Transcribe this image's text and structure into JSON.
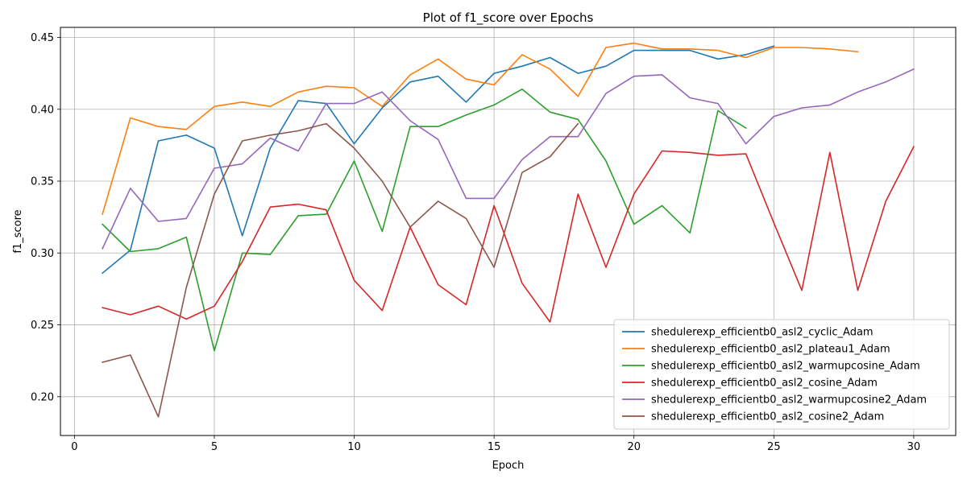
{
  "chart_data": {
    "type": "line",
    "title": "Plot of f1_score over Epochs",
    "xlabel": "Epoch",
    "ylabel": "f1_score",
    "xlim": [
      -0.5,
      31.5
    ],
    "ylim": [
      0.173,
      0.457
    ],
    "xticks": [
      0,
      5,
      10,
      15,
      20,
      25,
      30
    ],
    "yticks": [
      0.2,
      0.25,
      0.3,
      0.35,
      0.4,
      0.45
    ],
    "xtick_labels": [
      "0",
      "5",
      "10",
      "15",
      "20",
      "25",
      "30"
    ],
    "ytick_labels": [
      "0.20",
      "0.25",
      "0.30",
      "0.35",
      "0.40",
      "0.45"
    ],
    "grid": true,
    "legend_position": "bottom-right",
    "series": [
      {
        "name": "shedulerexp_efficientb0_asl2_cyclic_Adam",
        "color": "#1f77b4",
        "x": [
          1,
          2,
          3,
          4,
          5,
          6,
          7,
          8,
          9,
          10,
          11,
          12,
          13,
          14,
          15,
          16,
          17,
          18,
          19,
          20,
          21,
          22,
          23,
          24,
          25
        ],
        "y": [
          0.286,
          0.302,
          0.378,
          0.382,
          0.373,
          0.312,
          0.373,
          0.406,
          0.404,
          0.376,
          0.401,
          0.419,
          0.423,
          0.405,
          0.425,
          0.43,
          0.436,
          0.425,
          0.43,
          0.441,
          0.441,
          0.441,
          0.435,
          0.438,
          0.444
        ]
      },
      {
        "name": "shedulerexp_efficientb0_asl2_plateau1_Adam",
        "color": "#ff7f0e",
        "x": [
          1,
          2,
          3,
          4,
          5,
          6,
          7,
          8,
          9,
          10,
          11,
          12,
          13,
          14,
          15,
          16,
          17,
          18,
          19,
          20,
          21,
          22,
          23,
          24,
          25,
          26,
          27,
          28
        ],
        "y": [
          0.327,
          0.394,
          0.388,
          0.386,
          0.402,
          0.405,
          0.402,
          0.412,
          0.416,
          0.415,
          0.402,
          0.424,
          0.435,
          0.421,
          0.417,
          0.438,
          0.428,
          0.409,
          0.443,
          0.446,
          0.442,
          0.442,
          0.441,
          0.436,
          0.443,
          0.443,
          0.442,
          0.44
        ]
      },
      {
        "name": "shedulerexp_efficientb0_asl2_warmupcosine_Adam",
        "color": "#2ca02c",
        "x": [
          1,
          2,
          3,
          4,
          5,
          6,
          7,
          8,
          9,
          10,
          11,
          12,
          13,
          14,
          15,
          16,
          17,
          18,
          19,
          20,
          21,
          22,
          23,
          24
        ],
        "y": [
          0.32,
          0.301,
          0.303,
          0.311,
          0.232,
          0.3,
          0.299,
          0.326,
          0.327,
          0.364,
          0.315,
          0.388,
          0.388,
          0.396,
          0.403,
          0.414,
          0.398,
          0.393,
          0.364,
          0.32,
          0.333,
          0.314,
          0.399,
          0.387
        ]
      },
      {
        "name": "shedulerexp_efficientb0_asl2_cosine_Adam",
        "color": "#d62728",
        "x": [
          1,
          2,
          3,
          4,
          5,
          6,
          7,
          8,
          9,
          10,
          11,
          12,
          13,
          14,
          15,
          16,
          17,
          18,
          19,
          20,
          21,
          22,
          23,
          24,
          25,
          26,
          27,
          28,
          29,
          30
        ],
        "y": [
          0.262,
          0.257,
          0.263,
          0.254,
          0.263,
          0.294,
          0.332,
          0.334,
          0.33,
          0.281,
          0.26,
          0.318,
          0.278,
          0.264,
          0.333,
          0.279,
          0.252,
          0.341,
          0.29,
          0.341,
          0.371,
          0.37,
          0.368,
          0.369,
          0.321,
          0.274,
          0.37,
          0.274,
          0.336,
          0.374
        ]
      },
      {
        "name": "shedulerexp_efficientb0_asl2_warmupcosine2_Adam",
        "color": "#9467bd",
        "x": [
          1,
          2,
          3,
          4,
          5,
          6,
          7,
          8,
          9,
          10,
          11,
          12,
          13,
          14,
          15,
          16,
          17,
          18,
          19,
          20,
          21,
          22,
          23,
          24,
          25,
          26,
          27,
          28,
          29,
          30
        ],
        "y": [
          0.303,
          0.345,
          0.322,
          0.324,
          0.359,
          0.362,
          0.38,
          0.371,
          0.404,
          0.404,
          0.412,
          0.392,
          0.379,
          0.338,
          0.338,
          0.365,
          0.381,
          0.381,
          0.411,
          0.423,
          0.424,
          0.408,
          0.404,
          0.376,
          0.395,
          0.401,
          0.403,
          0.412,
          0.419,
          0.428
        ]
      },
      {
        "name": "shedulerexp_efficientb0_asl2_cosine2_Adam",
        "color": "#8c564b",
        "x": [
          1,
          2,
          3,
          4,
          5,
          6,
          7,
          8,
          9,
          10,
          11,
          12,
          13,
          14,
          15,
          16,
          17,
          18
        ],
        "y": [
          0.224,
          0.229,
          0.186,
          0.276,
          0.341,
          0.378,
          0.382,
          0.385,
          0.39,
          0.373,
          0.35,
          0.318,
          0.336,
          0.324,
          0.29,
          0.356,
          0.367,
          0.39
        ]
      }
    ]
  }
}
